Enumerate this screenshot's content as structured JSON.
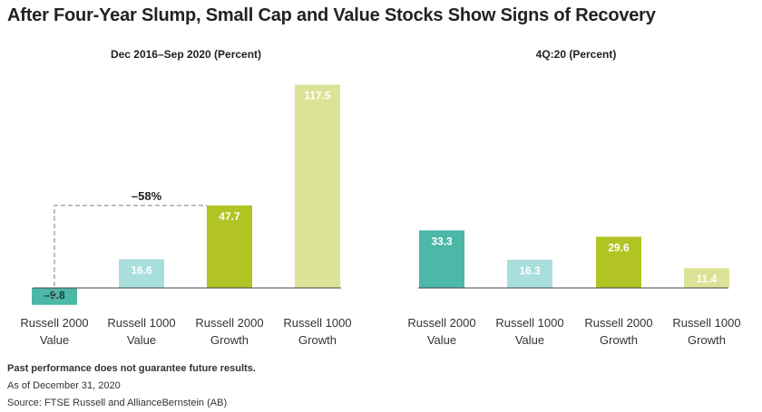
{
  "title": "After Four-Year Slump, Small Cap and Value Stocks Show Signs of Recovery",
  "colors": {
    "russell_2000_value": "#4cb8a7",
    "russell_1000_value": "#a8dedb",
    "russell_2000_growth": "#b2c423",
    "russell_1000_growth": "#dce397",
    "axis": "#444444",
    "bracket": "#999999"
  },
  "chart_data": [
    {
      "type": "bar",
      "title": "Dec 2016–Sep 2020 (Percent)",
      "categories": [
        "Russell 2000 Value",
        "Russell 1000 Value",
        "Russell 2000 Growth",
        "Russell 1000 Growth"
      ],
      "category_lines": [
        [
          "Russell 2000",
          "Value"
        ],
        [
          "Russell 1000",
          "Value"
        ],
        [
          "Russell 2000",
          "Growth"
        ],
        [
          "Russell 1000",
          "Growth"
        ]
      ],
      "values": [
        -9.8,
        16.6,
        47.7,
        117.5
      ],
      "value_labels": [
        "–9.8",
        "16.6",
        "47.7",
        "117.5"
      ],
      "annotation": {
        "text": "–58%",
        "from_index": 0,
        "to_index": 2
      },
      "xlabel": "",
      "ylabel": ""
    },
    {
      "type": "bar",
      "title": "4Q:20 (Percent)",
      "categories": [
        "Russell 2000 Value",
        "Russell 1000 Value",
        "Russell 2000 Growth",
        "Russell 1000 Growth"
      ],
      "category_lines": [
        [
          "Russell 2000",
          "Value"
        ],
        [
          "Russell 1000",
          "Value"
        ],
        [
          "Russell 2000",
          "Growth"
        ],
        [
          "Russell 1000",
          "Growth"
        ]
      ],
      "values": [
        33.3,
        16.3,
        29.6,
        11.4
      ],
      "value_labels": [
        "33.3",
        "16.3",
        "29.6",
        "11.4"
      ],
      "xlabel": "",
      "ylabel": ""
    }
  ],
  "footer": {
    "disclaimer": "Past performance does not guarantee future results.",
    "date_note": "As of December 31, 2020",
    "source": "Source: FTSE Russell and AllianceBernstein (AB)"
  }
}
